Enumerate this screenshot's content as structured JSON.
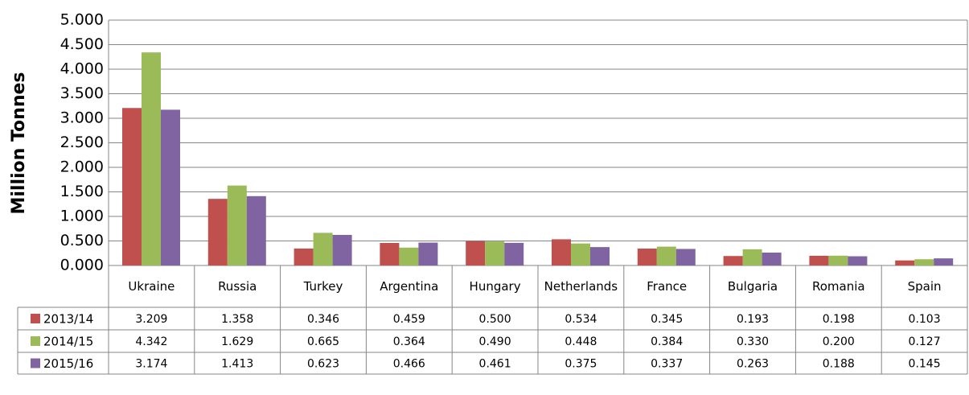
{
  "chart_data": {
    "type": "bar",
    "y_label": "Million Tonnes",
    "categories": [
      "Ukraine",
      "Russia",
      "Turkey",
      "Argentina",
      "Hungary",
      "Netherlands",
      "France",
      "Bulgaria",
      "Romania",
      "Spain"
    ],
    "series": [
      {
        "name": "2013/14",
        "color": "#c0504d",
        "values": [
          3.209,
          1.358,
          0.346,
          0.459,
          0.5,
          0.534,
          0.345,
          0.193,
          0.198,
          0.103
        ],
        "value_labels": [
          "3.209",
          "1.358",
          "0.346",
          "0.459",
          "0.500",
          "0.534",
          "0.345",
          "0.193",
          "0.198",
          "0.103"
        ]
      },
      {
        "name": "2014/15",
        "color": "#9bbb59",
        "values": [
          4.342,
          1.629,
          0.665,
          0.364,
          0.49,
          0.448,
          0.384,
          0.33,
          0.2,
          0.127
        ],
        "value_labels": [
          "4.342",
          "1.629",
          "0.665",
          "0.364",
          "0.490",
          "0.448",
          "0.384",
          "0.330",
          "0.200",
          "0.127"
        ]
      },
      {
        "name": "2015/16",
        "color": "#8064a2",
        "values": [
          3.174,
          1.413,
          0.623,
          0.466,
          0.461,
          0.375,
          0.337,
          0.263,
          0.188,
          0.145
        ],
        "value_labels": [
          "3.174",
          "1.413",
          "0.623",
          "0.466",
          "0.461",
          "0.375",
          "0.337",
          "0.263",
          "0.188",
          "0.145"
        ]
      }
    ],
    "ylim": [
      0,
      5
    ],
    "yticks": [
      {
        "value": 0,
        "label": "0.000"
      },
      {
        "value": 0.5,
        "label": "0.500"
      },
      {
        "value": 1,
        "label": "1.000"
      },
      {
        "value": 1.5,
        "label": "1.500"
      },
      {
        "value": 2,
        "label": "2.000"
      },
      {
        "value": 2.5,
        "label": "2.500"
      },
      {
        "value": 3,
        "label": "3.000"
      },
      {
        "value": 3.5,
        "label": "3.500"
      },
      {
        "value": 4,
        "label": "4.000"
      },
      {
        "value": 4.5,
        "label": "4.500"
      },
      {
        "value": 5,
        "label": "5.000"
      }
    ],
    "grid": true
  }
}
